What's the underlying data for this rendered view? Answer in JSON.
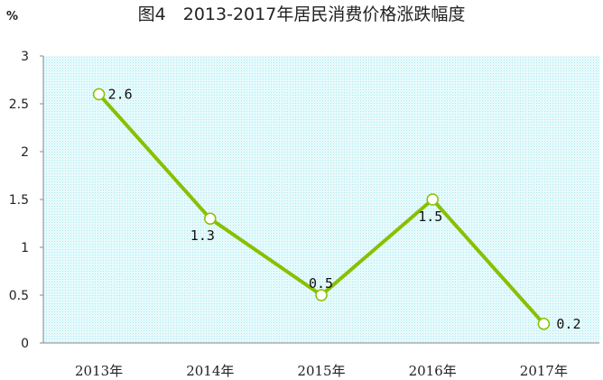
{
  "chart_data": {
    "type": "line",
    "title": "图4　2013-2017年居民消费价格涨跌幅度",
    "ylabel": "%",
    "xlabel": "",
    "categories": [
      "2013年",
      "2014年",
      "2015年",
      "2016年",
      "2017年"
    ],
    "series": [
      {
        "values": [
          2.6,
          1.3,
          0.5,
          1.5,
          0.2
        ],
        "labels": [
          "2.6",
          "1.3",
          "0.5",
          "1.5",
          "0.2"
        ],
        "color": "#88c000",
        "marker_fill": "#ffffff"
      }
    ],
    "ylim": [
      0,
      3
    ],
    "yticks": [
      "0",
      "0.5",
      "1",
      "1.5",
      "2",
      "2.5",
      "3"
    ],
    "grid": false,
    "legend": "none",
    "plot_background": "#e6fafc",
    "plot_pattern": "#a8e6ee"
  }
}
